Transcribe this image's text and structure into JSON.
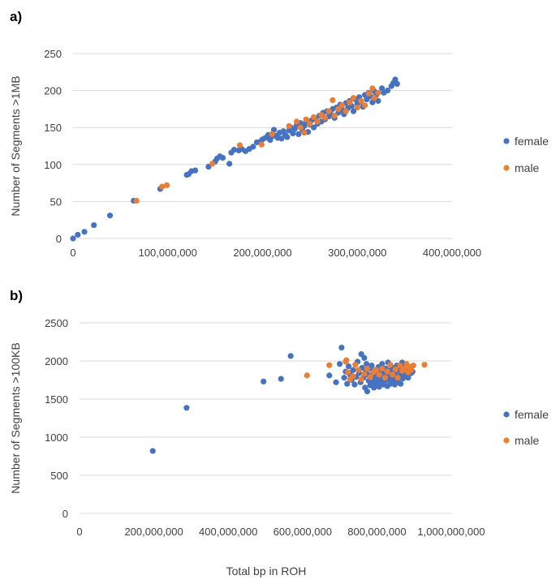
{
  "chart_data": [
    {
      "type": "scatter",
      "panel_label": "a)",
      "ylabel": "Number of Segments >1MB",
      "xlabel": "",
      "xlim": [
        0,
        400000000
      ],
      "ylim": [
        0,
        250
      ],
      "x_ticks": [
        0,
        100000000,
        200000000,
        300000000,
        400000000
      ],
      "x_tick_labels": [
        "0",
        "100,000,000",
        "200,000,000",
        "300,000,000",
        "400,000,000"
      ],
      "y_ticks": [
        0,
        50,
        100,
        150,
        200,
        250
      ],
      "y_tick_labels": [
        "0",
        "50",
        "100",
        "150",
        "200",
        "250"
      ],
      "grid": "horizontal",
      "legend_position": "right",
      "series": [
        {
          "name": "female",
          "color": "#4472C4",
          "points": [
            [
              0,
              0
            ],
            [
              5000000,
              5
            ],
            [
              12000000,
              9
            ],
            [
              22000000,
              18
            ],
            [
              39000000,
              31
            ],
            [
              64000000,
              51
            ],
            [
              92000000,
              67
            ],
            [
              120000000,
              86
            ],
            [
              122000000,
              87
            ],
            [
              125000000,
              91
            ],
            [
              129000000,
              92
            ],
            [
              143000000,
              97
            ],
            [
              150000000,
              104
            ],
            [
              152000000,
              108
            ],
            [
              155000000,
              111
            ],
            [
              158000000,
              109
            ],
            [
              165000000,
              101
            ],
            [
              167000000,
              116
            ],
            [
              170000000,
              120
            ],
            [
              175000000,
              119
            ],
            [
              178000000,
              121
            ],
            [
              182000000,
              118
            ],
            [
              186000000,
              121
            ],
            [
              190000000,
              124
            ],
            [
              194000000,
              130
            ],
            [
              198000000,
              131
            ],
            [
              200000000,
              134
            ],
            [
              203000000,
              136
            ],
            [
              206000000,
              140
            ],
            [
              208000000,
              133
            ],
            [
              210000000,
              138
            ],
            [
              212000000,
              147
            ],
            [
              214000000,
              139
            ],
            [
              216000000,
              136
            ],
            [
              218000000,
              143
            ],
            [
              220000000,
              135
            ],
            [
              222000000,
              145
            ],
            [
              224000000,
              140
            ],
            [
              226000000,
              137
            ],
            [
              228000000,
              146
            ],
            [
              230000000,
              150
            ],
            [
              232000000,
              142
            ],
            [
              234000000,
              148
            ],
            [
              236000000,
              153
            ],
            [
              238000000,
              141
            ],
            [
              240000000,
              156
            ],
            [
              242000000,
              147
            ],
            [
              244000000,
              152
            ],
            [
              246000000,
              158
            ],
            [
              248000000,
              144
            ],
            [
              250000000,
              154
            ],
            [
              252000000,
              160
            ],
            [
              254000000,
              150
            ],
            [
              256000000,
              162
            ],
            [
              258000000,
              155
            ],
            [
              260000000,
              166
            ],
            [
              262000000,
              158
            ],
            [
              264000000,
              170
            ],
            [
              266000000,
              161
            ],
            [
              268000000,
              172
            ],
            [
              270000000,
              165
            ],
            [
              272000000,
              168
            ],
            [
              274000000,
              175
            ],
            [
              276000000,
              163
            ],
            [
              278000000,
              177
            ],
            [
              280000000,
              170
            ],
            [
              282000000,
              181
            ],
            [
              284000000,
              174
            ],
            [
              286000000,
              168
            ],
            [
              288000000,
              183
            ],
            [
              290000000,
              176
            ],
            [
              292000000,
              186
            ],
            [
              294000000,
              179
            ],
            [
              296000000,
              172
            ],
            [
              298000000,
              188
            ],
            [
              300000000,
              182
            ],
            [
              302000000,
              191
            ],
            [
              304000000,
              185
            ],
            [
              306000000,
              178
            ],
            [
              308000000,
              194
            ],
            [
              310000000,
              188
            ],
            [
              312000000,
              197
            ],
            [
              314000000,
              192
            ],
            [
              316000000,
              184
            ],
            [
              318000000,
              199
            ],
            [
              320000000,
              194
            ],
            [
              322000000,
              186
            ],
            [
              326000000,
              203
            ],
            [
              328000000,
              197
            ],
            [
              332000000,
              200
            ],
            [
              336000000,
              206
            ],
            [
              338000000,
              210
            ],
            [
              340000000,
              215
            ],
            [
              342000000,
              209
            ]
          ]
        },
        {
          "name": "male",
          "color": "#ED7D31",
          "points": [
            [
              67000000,
              51
            ],
            [
              94000000,
              70
            ],
            [
              99000000,
              72
            ],
            [
              147000000,
              101
            ],
            [
              176000000,
              126
            ],
            [
              199000000,
              127
            ],
            [
              210000000,
              141
            ],
            [
              228000000,
              152
            ],
            [
              236000000,
              158
            ],
            [
              240000000,
              150
            ],
            [
              244000000,
              143
            ],
            [
              246000000,
              161
            ],
            [
              250000000,
              155
            ],
            [
              254000000,
              164
            ],
            [
              258000000,
              158
            ],
            [
              262000000,
              167
            ],
            [
              266000000,
              163
            ],
            [
              270000000,
              172
            ],
            [
              274000000,
              187
            ],
            [
              276000000,
              166
            ],
            [
              280000000,
              175
            ],
            [
              284000000,
              180
            ],
            [
              288000000,
              172
            ],
            [
              292000000,
              184
            ],
            [
              296000000,
              190
            ],
            [
              300000000,
              177
            ],
            [
              304000000,
              186
            ],
            [
              308000000,
              180
            ],
            [
              312000000,
              196
            ],
            [
              316000000,
              203
            ],
            [
              318000000,
              190
            ],
            [
              322000000,
              197
            ]
          ]
        }
      ]
    },
    {
      "type": "scatter",
      "panel_label": "b)",
      "ylabel": "Number of Segments >100KB",
      "xlabel": "Total bp in ROH",
      "xlim": [
        0,
        1000000000
      ],
      "ylim": [
        0,
        2500
      ],
      "x_ticks": [
        0,
        200000000,
        400000000,
        600000000,
        800000000,
        1000000000
      ],
      "x_tick_labels": [
        "0",
        "200,000,000",
        "400,000,000",
        "600,000,000",
        "800,000,000",
        "1,000,000,000"
      ],
      "y_ticks": [
        0,
        500,
        1000,
        1500,
        2000,
        2500
      ],
      "y_tick_labels": [
        "0",
        "500",
        "1000",
        "1500",
        "2000",
        "2500"
      ],
      "grid": "horizontal",
      "legend_position": "right",
      "series": [
        {
          "name": "female",
          "color": "#4472C4",
          "points": [
            [
              197000000,
              820
            ],
            [
              288000000,
              1385
            ],
            [
              495000000,
              1730
            ],
            [
              542000000,
              1765
            ],
            [
              568000000,
              2065
            ],
            [
              672000000,
              1810
            ],
            [
              690000000,
              1720
            ],
            [
              700000000,
              1960
            ],
            [
              705000000,
              2175
            ],
            [
              712000000,
              1780
            ],
            [
              716000000,
              1860
            ],
            [
              720000000,
              1700
            ],
            [
              724000000,
              1930
            ],
            [
              728000000,
              1820
            ],
            [
              732000000,
              1750
            ],
            [
              736000000,
              1880
            ],
            [
              740000000,
              1690
            ],
            [
              744000000,
              1790
            ],
            [
              748000000,
              1990
            ],
            [
              752000000,
              1840
            ],
            [
              756000000,
              1720
            ],
            [
              758000000,
              2090
            ],
            [
              760000000,
              1910
            ],
            [
              764000000,
              1780
            ],
            [
              766000000,
              2040
            ],
            [
              768000000,
              1650
            ],
            [
              770000000,
              1870
            ],
            [
              772000000,
              1960
            ],
            [
              774000000,
              1600
            ],
            [
              776000000,
              1820
            ],
            [
              778000000,
              1740
            ],
            [
              780000000,
              1900
            ],
            [
              782000000,
              1680
            ],
            [
              784000000,
              1800
            ],
            [
              786000000,
              1940
            ],
            [
              788000000,
              1720
            ],
            [
              790000000,
              1860
            ],
            [
              792000000,
              1650
            ],
            [
              794000000,
              1780
            ],
            [
              796000000,
              1880
            ],
            [
              798000000,
              1700
            ],
            [
              800000000,
              1830
            ],
            [
              802000000,
              1750
            ],
            [
              804000000,
              1920
            ],
            [
              806000000,
              1660
            ],
            [
              808000000,
              1800
            ],
            [
              810000000,
              1870
            ],
            [
              812000000,
              1720
            ],
            [
              814000000,
              1960
            ],
            [
              816000000,
              1780
            ],
            [
              818000000,
              1690
            ],
            [
              820000000,
              1850
            ],
            [
              822000000,
              1740
            ],
            [
              824000000,
              1900
            ],
            [
              826000000,
              1800
            ],
            [
              828000000,
              1670
            ],
            [
              830000000,
              1980
            ],
            [
              832000000,
              1760
            ],
            [
              834000000,
              1840
            ],
            [
              836000000,
              1700
            ],
            [
              838000000,
              1880
            ],
            [
              840000000,
              1790
            ],
            [
              842000000,
              1730
            ],
            [
              844000000,
              1910
            ],
            [
              846000000,
              1820
            ],
            [
              848000000,
              1690
            ],
            [
              850000000,
              1860
            ],
            [
              852000000,
              1760
            ],
            [
              854000000,
              1940
            ],
            [
              856000000,
              1800
            ],
            [
              858000000,
              1720
            ],
            [
              860000000,
              1880
            ],
            [
              862000000,
              1790
            ],
            [
              864000000,
              1700
            ],
            [
              866000000,
              1850
            ],
            [
              868000000,
              1980
            ],
            [
              870000000,
              1770
            ],
            [
              872000000,
              1910
            ],
            [
              876000000,
              1820
            ],
            [
              880000000,
              1870
            ],
            [
              884000000,
              1780
            ],
            [
              888000000,
              1900
            ],
            [
              892000000,
              1840
            ],
            [
              896000000,
              1860
            ]
          ]
        },
        {
          "name": "male",
          "color": "#ED7D31",
          "points": [
            [
              612000000,
              1810
            ],
            [
              672000000,
              1945
            ],
            [
              716000000,
              1990
            ],
            [
              718000000,
              2010
            ],
            [
              722000000,
              1850
            ],
            [
              728000000,
              1760
            ],
            [
              736000000,
              1800
            ],
            [
              742000000,
              1950
            ],
            [
              750000000,
              1880
            ],
            [
              758000000,
              1760
            ],
            [
              766000000,
              1830
            ],
            [
              774000000,
              1900
            ],
            [
              782000000,
              1790
            ],
            [
              790000000,
              1850
            ],
            [
              798000000,
              1880
            ],
            [
              806000000,
              1820
            ],
            [
              814000000,
              1900
            ],
            [
              822000000,
              1780
            ],
            [
              828000000,
              1860
            ],
            [
              836000000,
              1950
            ],
            [
              842000000,
              1820
            ],
            [
              850000000,
              1890
            ],
            [
              856000000,
              1780
            ],
            [
              862000000,
              1940
            ],
            [
              868000000,
              1870
            ],
            [
              874000000,
              1900
            ],
            [
              880000000,
              1960
            ],
            [
              884000000,
              1850
            ],
            [
              888000000,
              1920
            ],
            [
              892000000,
              1880
            ],
            [
              898000000,
              1940
            ],
            [
              928000000,
              1950
            ]
          ]
        }
      ]
    }
  ]
}
